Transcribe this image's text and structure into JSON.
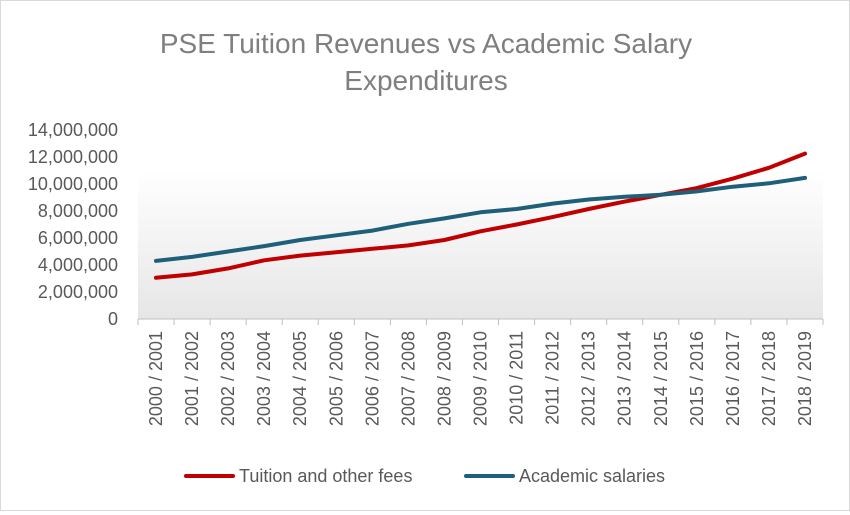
{
  "chart_data": {
    "type": "line",
    "title_lines": [
      "PSE Tuition Revenues vs Academic Salary",
      "Expenditures"
    ],
    "xlabel": "",
    "ylabel": "",
    "ylim": [
      0,
      14000000
    ],
    "yticks": [
      0,
      2000000,
      4000000,
      6000000,
      8000000,
      10000000,
      12000000,
      14000000
    ],
    "ytick_labels": [
      "0",
      "2,000,000",
      "4,000,000",
      "6,000,000",
      "8,000,000",
      "10,000,000",
      "12,000,000",
      "14,000,000"
    ],
    "categories": [
      "2000 / 2001",
      "2001 / 2002",
      "2002 / 2003",
      "2003 / 2004",
      "2004 / 2005",
      "2005 / 2006",
      "2006 / 2007",
      "2007 / 2008",
      "2008 / 2009",
      "2009 / 2010",
      "2010 / 2011",
      "2011 / 2012",
      "2012 / 2013",
      "2013 / 2014",
      "2014 / 2015",
      "2015 / 2016",
      "2016 / 2017",
      "2017 / 2018",
      "2018 / 2019"
    ],
    "series": [
      {
        "name": "Tuition and other fees",
        "color": "#c00000",
        "values": [
          3050000,
          3300000,
          3750000,
          4350000,
          4700000,
          4950000,
          5200000,
          5450000,
          5850000,
          6500000,
          7000000,
          7550000,
          8150000,
          8700000,
          9200000,
          9700000,
          10400000,
          11200000,
          12250000
        ]
      },
      {
        "name": "Academic salaries",
        "color": "#1f5f7a",
        "values": [
          4300000,
          4600000,
          5000000,
          5400000,
          5850000,
          6200000,
          6550000,
          7050000,
          7450000,
          7900000,
          8150000,
          8550000,
          8850000,
          9050000,
          9200000,
          9450000,
          9800000,
          10050000,
          10450000
        ]
      }
    ],
    "grid": false,
    "legend_position": "bottom"
  }
}
